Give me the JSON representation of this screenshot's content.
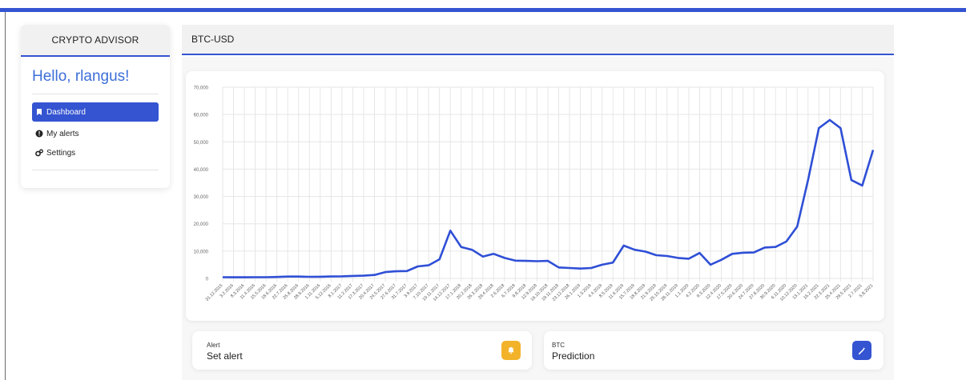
{
  "sidebar": {
    "title": "CRYPTO ADVISOR",
    "greeting": "Hello, rlangus!",
    "items": [
      {
        "label": "Dashboard",
        "icon": "bookmark-icon",
        "active": true
      },
      {
        "label": "My alerts",
        "icon": "exclamation-circle-icon",
        "active": false
      },
      {
        "label": "Settings",
        "icon": "gears-icon",
        "active": false
      }
    ]
  },
  "main": {
    "title": "BTC-USD"
  },
  "cards": {
    "alert": {
      "small": "Alert",
      "big": "Set alert",
      "icon": "bell-icon",
      "color": "#f2b32a"
    },
    "prediction": {
      "small": "BTC",
      "big": "Prediction",
      "icon": "magic-wand-icon",
      "color": "#3454d1"
    }
  },
  "colors": {
    "accent": "#3454d1",
    "line": "#2f4fd6",
    "greeting": "#3d6fd8"
  },
  "chart_data": {
    "type": "line",
    "title": "",
    "xlabel": "",
    "ylabel": "",
    "ylim": [
      0,
      70000
    ],
    "yticks": [
      "0",
      "10,000",
      "20,000",
      "30,000",
      "40,000",
      "50,000",
      "60,000",
      "70,000"
    ],
    "grid": true,
    "xtick_labels": [
      "31.12.2015",
      "3.2.2016",
      "8.3.2016",
      "11.4.2016",
      "15.5.2016",
      "18.6.2016",
      "22.7.2016",
      "25.8.2016",
      "28.9.2016",
      "1.11.2016",
      "5.12.2016",
      "8.1.2017",
      "11.2.2017",
      "17.3.2017",
      "20.4.2017",
      "24.5.2017",
      "27.6.2017",
      "31.7.2017",
      "3.9.2017",
      "7.10.2017",
      "10.11.2017",
      "14.12.2017",
      "17.1.2018",
      "20.2.2018",
      "26.3.2018",
      "29.4.2018",
      "2.6.2018",
      "6.7.2018",
      "9.8.2018",
      "12.9.2018",
      "16.10.2018",
      "19.11.2018",
      "23.12.2018",
      "26.1.2019",
      "1.3.2019",
      "4.4.2019",
      "8.5.2019",
      "11.6.2019",
      "15.7.2019",
      "18.8.2019",
      "21.9.2019",
      "25.10.2019",
      "28.11.2019",
      "1.1.2020",
      "4.2.2020",
      "9.3.2020",
      "12.4.2020",
      "17.5.2020",
      "20.6.2020",
      "24.7.2020",
      "27.8.2020",
      "30.9.2020",
      "6.11.2020",
      "10.12.2020",
      "13.1.2021",
      "16.2.2021",
      "22.3.2021",
      "25.4.2021",
      "29.5.2021",
      "2.7.2021",
      "5.8.2021"
    ],
    "series": [
      {
        "values": [
          430,
          410,
          420,
          430,
          450,
          530,
          670,
          660,
          580,
          610,
          700,
          760,
          900,
          1000,
          1250,
          2300,
          2600,
          2700,
          4400,
          4800,
          7000,
          17500,
          11500,
          10500,
          8000,
          9000,
          7500,
          6500,
          6400,
          6300,
          6400,
          4000,
          3800,
          3600,
          3800,
          5000,
          5800,
          12000,
          10500,
          9800,
          8500,
          8200,
          7500,
          7200,
          9300,
          5000,
          6800,
          9000,
          9400,
          9500,
          11300,
          11500,
          13500,
          19000,
          36000,
          55000,
          58000,
          55000,
          36000,
          34000,
          47000
        ]
      }
    ]
  }
}
